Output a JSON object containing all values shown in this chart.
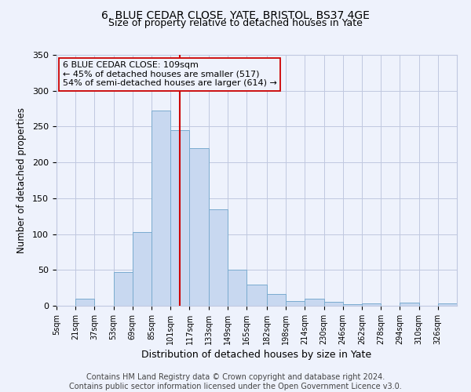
{
  "title": "6, BLUE CEDAR CLOSE, YATE, BRISTOL, BS37 4GE",
  "subtitle": "Size of property relative to detached houses in Yate",
  "xlabel": "Distribution of detached houses by size in Yate",
  "ylabel": "Number of detached properties",
  "footer_line1": "Contains HM Land Registry data © Crown copyright and database right 2024.",
  "footer_line2": "Contains public sector information licensed under the Open Government Licence v3.0.",
  "annotation_line1": "6 BLUE CEDAR CLOSE: 109sqm",
  "annotation_line2": "← 45% of detached houses are smaller (517)",
  "annotation_line3": "54% of semi-detached houses are larger (614) →",
  "bar_edges": [
    5,
    21,
    37,
    53,
    69,
    85,
    101,
    117,
    133,
    149,
    165,
    182,
    198,
    214,
    230,
    246,
    262,
    278,
    294,
    310,
    326,
    342
  ],
  "bar_heights": [
    0,
    10,
    0,
    47,
    103,
    272,
    245,
    220,
    135,
    50,
    30,
    16,
    7,
    10,
    5,
    2,
    3,
    0,
    4,
    0,
    3
  ],
  "bar_color": "#c8d8f0",
  "bar_edge_color": "#7aabcf",
  "vline_x": 109,
  "vline_color": "#cc0000",
  "ylim": [
    0,
    350
  ],
  "bg_color": "#eef2fc",
  "grid_color": "#c0c8e0",
  "annotation_box_edge": "#cc0000",
  "title_fontsize": 10,
  "subtitle_fontsize": 9,
  "xlabel_fontsize": 9,
  "ylabel_fontsize": 8.5,
  "footer_fontsize": 7,
  "annotation_fontsize": 8,
  "tick_fontsize": 7,
  "ytick_fontsize": 8
}
